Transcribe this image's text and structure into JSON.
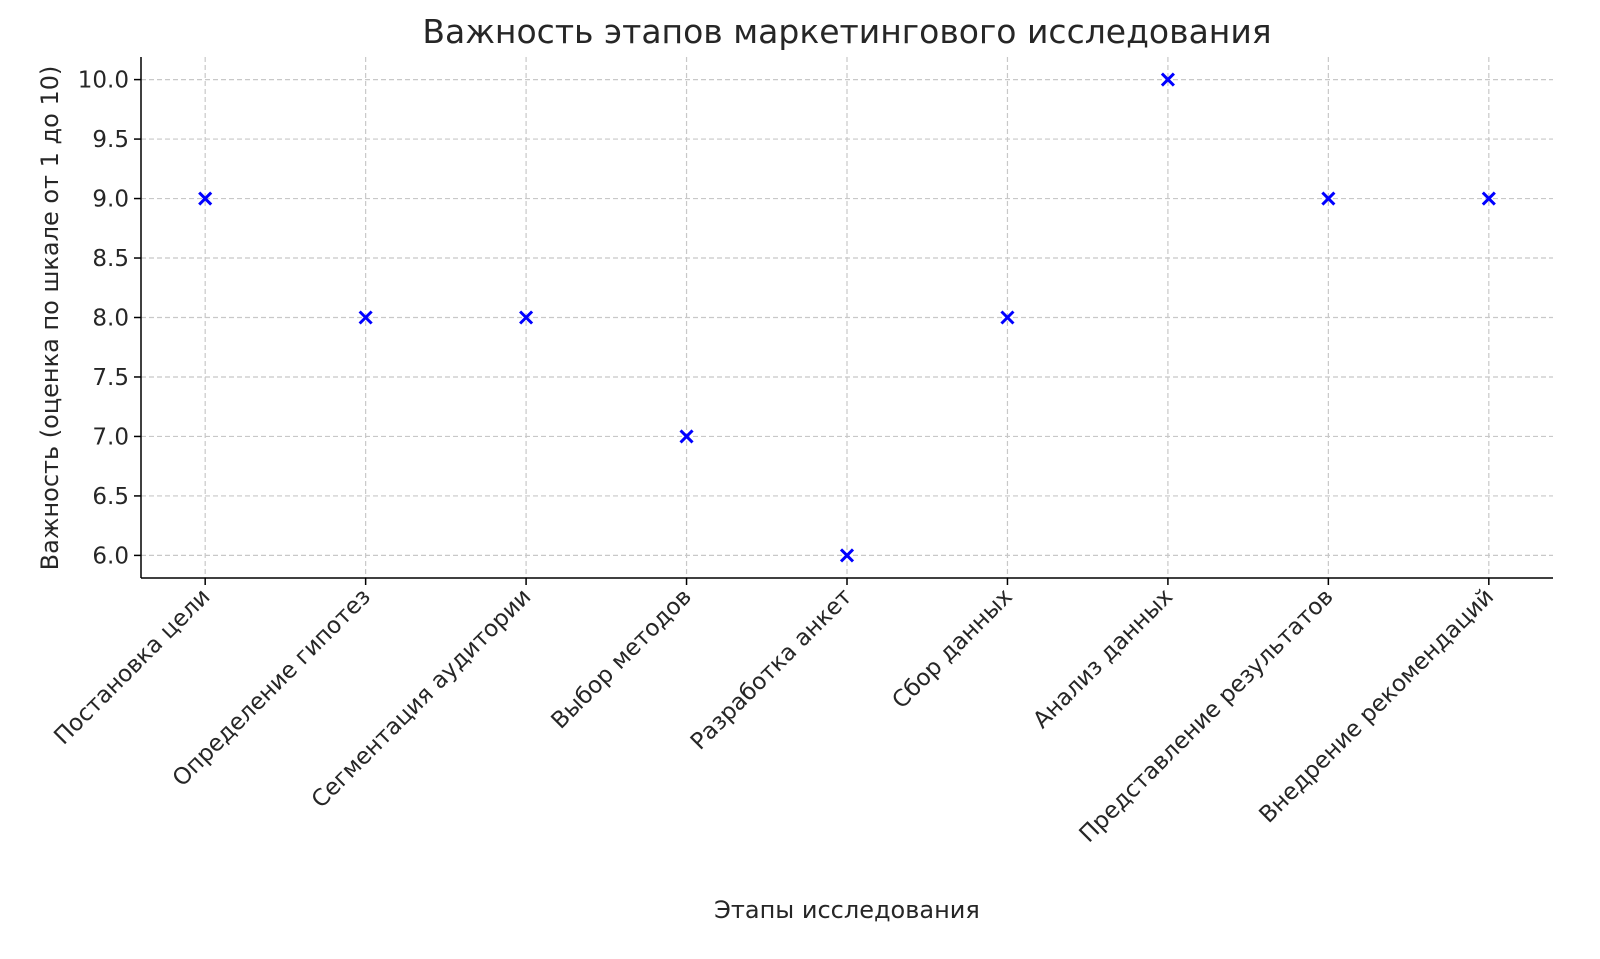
{
  "chart_data": {
    "type": "scatter",
    "title": "Важность этапов маркетингового исследования",
    "xlabel": "Этапы исследования",
    "ylabel": "Важность (оценка по шкале от 1 до 10)",
    "categories": [
      "Постановка цели",
      "Определение гипотез",
      "Сегментация аудитории",
      "Выбор методов",
      "Разработка анкет",
      "Сбор данных",
      "Анализ данных",
      "Представление результатов",
      "Внедрение рекомендаций"
    ],
    "values": [
      9,
      8,
      8,
      7,
      6,
      8,
      10,
      9,
      9
    ],
    "ylim": [
      5.81,
      10.19
    ],
    "yticks": [
      "6.0",
      "6.5",
      "7.0",
      "7.5",
      "8.0",
      "8.5",
      "9.0",
      "9.5",
      "10.0"
    ],
    "marker": "x",
    "color": "#0000ff",
    "grid": true
  }
}
